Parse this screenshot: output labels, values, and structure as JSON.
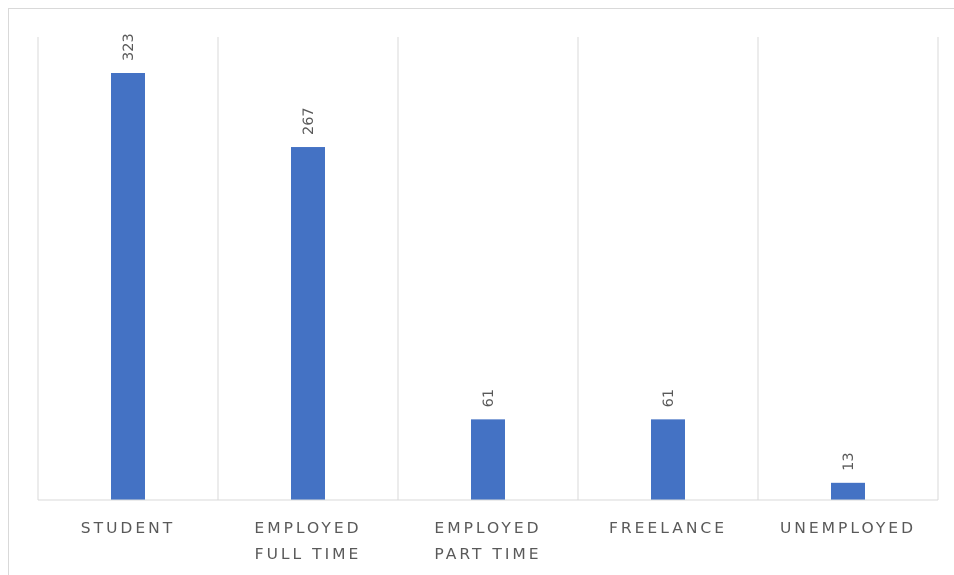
{
  "chart_data": {
    "type": "bar",
    "title": "",
    "xlabel": "",
    "ylabel": "",
    "categories": [
      [
        "STUDENT"
      ],
      [
        "EMPLOYED",
        "FULL TIME"
      ],
      [
        "EMPLOYED",
        "PART TIME"
      ],
      [
        "FREELANCE"
      ],
      [
        "UNEMPLOYED"
      ]
    ],
    "values": [
      323,
      267,
      61,
      61,
      13
    ],
    "data_labels": [
      "323",
      "267",
      "61",
      "61",
      "13"
    ],
    "ylim": [
      0,
      350
    ],
    "grid": "vertical separators",
    "legend": "none",
    "colors": {
      "bar": "#4472c4",
      "grid": "#d9d9d9",
      "text": "#595959"
    }
  }
}
